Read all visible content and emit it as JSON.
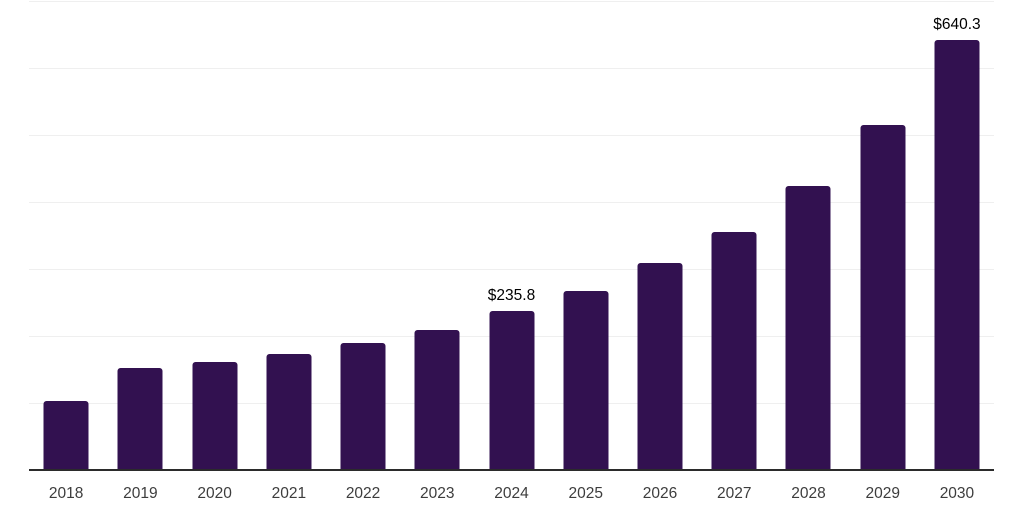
{
  "chart_data": {
    "type": "bar",
    "categories": [
      "2018",
      "2019",
      "2020",
      "2021",
      "2022",
      "2023",
      "2024",
      "2025",
      "2026",
      "2027",
      "2028",
      "2029",
      "2030"
    ],
    "values": [
      101,
      150,
      160,
      171,
      188,
      207,
      235.8,
      265,
      307,
      354,
      423,
      514,
      640.3
    ],
    "bar_labels": [
      "",
      "",
      "",
      "",
      "",
      "",
      "$235.8",
      "",
      "",
      "",
      "",
      "",
      "$640.3"
    ],
    "title": "",
    "xlabel": "",
    "ylabel": "",
    "ylim": [
      0,
      700
    ],
    "gridline_step": 100,
    "grid": "horizontal-only",
    "legend_position": "none",
    "colors": {
      "bar": "#321150",
      "axis_line": "#2b2b2b",
      "gridline": "#efefef",
      "tick_label": "#3d3d3d",
      "value_label": "#000000",
      "background": "#ffffff"
    }
  }
}
